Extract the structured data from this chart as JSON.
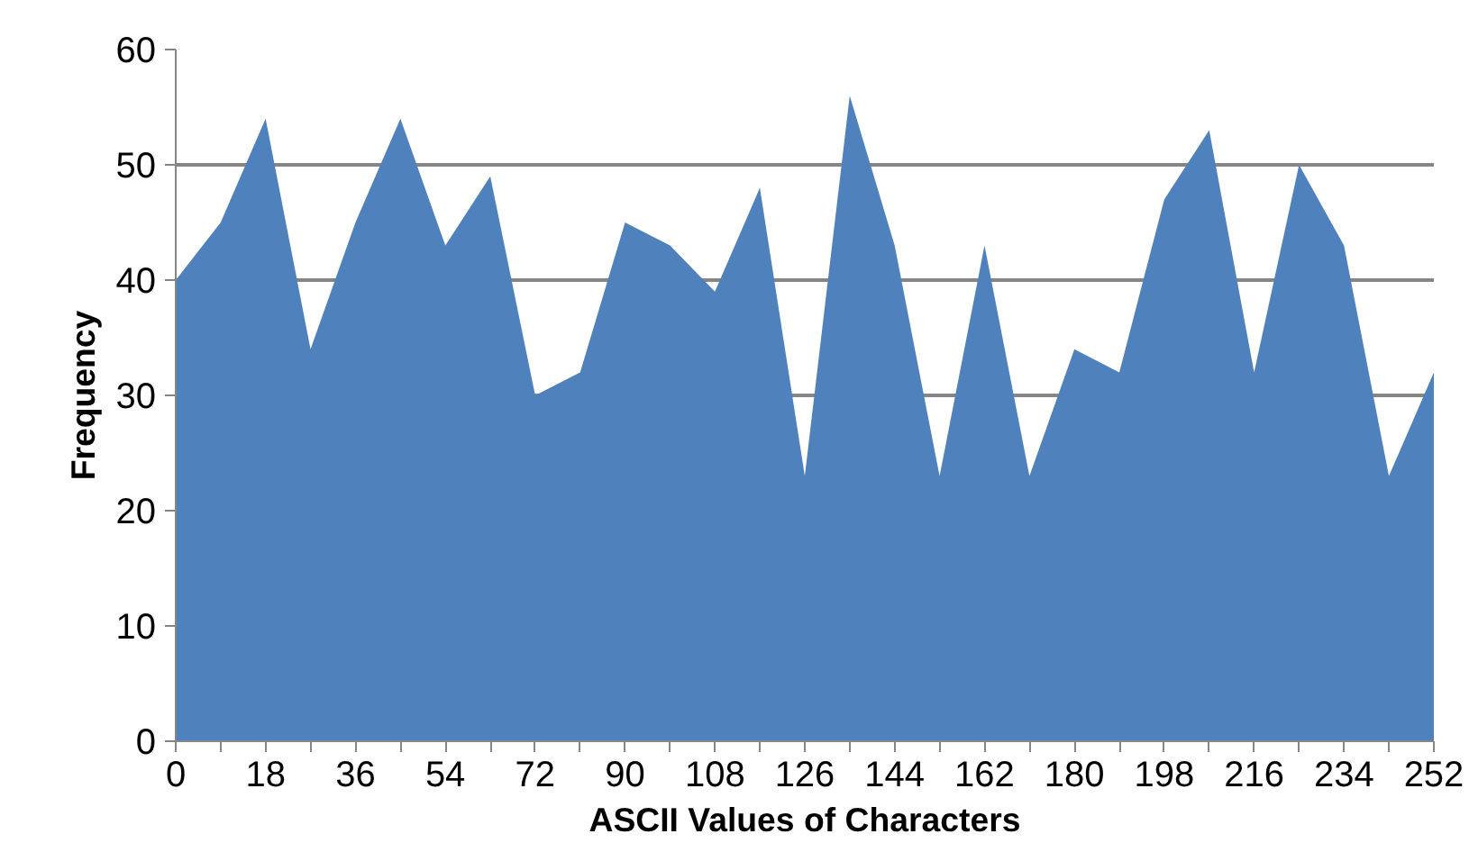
{
  "chart_data": {
    "type": "area",
    "xlabel": "ASCII Values of Characters",
    "ylabel": "Frequency",
    "categories": [
      "0",
      null,
      "18",
      null,
      "36",
      null,
      "54",
      null,
      "72",
      null,
      "90",
      null,
      "108",
      null,
      "126",
      null,
      "144",
      null,
      "162",
      null,
      "180",
      null,
      "198",
      null,
      "216",
      null,
      "234",
      null,
      "252"
    ],
    "values": [
      40,
      45,
      54,
      34,
      45,
      54,
      43,
      49,
      30,
      32,
      45,
      43,
      39,
      48,
      23,
      56,
      43,
      23,
      43,
      23,
      34,
      32,
      47,
      53,
      32,
      50,
      43,
      23,
      32
    ],
    "color": "#4f81bd",
    "ylim": [
      0,
      60
    ],
    "yticks": [
      0,
      10,
      20,
      30,
      40,
      50,
      60
    ],
    "grid": "y",
    "legend": false
  }
}
